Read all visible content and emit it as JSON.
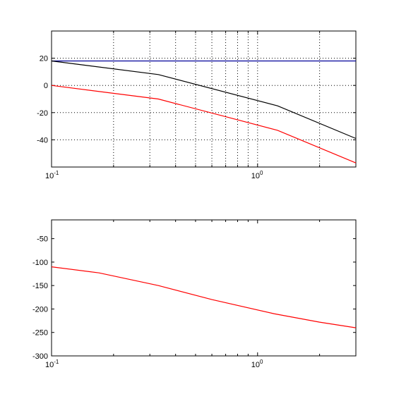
{
  "chart_data": [
    {
      "type": "line",
      "title": "",
      "xlabel": "",
      "ylabel": "",
      "xscale": "log",
      "xlim": [
        0.1,
        3
      ],
      "ylim": [
        -60,
        40
      ],
      "grid": true,
      "x_ticks": [
        {
          "base": "10",
          "exp": "-1",
          "value": 0.1
        },
        {
          "base": "10",
          "exp": "0",
          "value": 1
        }
      ],
      "y_ticks": [
        "20",
        "0",
        "-20",
        "-40"
      ],
      "y_tick_values": [
        20,
        0,
        -20,
        -40
      ],
      "series": [
        {
          "color": "#000099",
          "x": [
            0.1,
            3
          ],
          "y": [
            18,
            18
          ]
        },
        {
          "color": "#000000",
          "x": [
            0.1,
            0.33,
            1.25,
            3
          ],
          "y": [
            18,
            8,
            -15,
            -39
          ]
        },
        {
          "color": "#ff0000",
          "x": [
            0.1,
            0.33,
            1.25,
            3
          ],
          "y": [
            0,
            -10,
            -33,
            -57
          ]
        }
      ]
    },
    {
      "type": "line",
      "title": "",
      "xlabel": "",
      "ylabel": "",
      "xscale": "log",
      "xlim": [
        0.1,
        3
      ],
      "ylim": [
        -300,
        -10
      ],
      "grid": false,
      "x_ticks": [
        {
          "base": "10",
          "exp": "-1",
          "value": 0.1
        },
        {
          "base": "10",
          "exp": "0",
          "value": 1
        }
      ],
      "y_ticks": [
        "-50",
        "-100",
        "-150",
        "-200",
        "-250",
        "-300"
      ],
      "y_tick_values": [
        -50,
        -100,
        -150,
        -200,
        -250,
        -300
      ],
      "series": [
        {
          "color": "#ff0000",
          "x": [
            0.1,
            0.17,
            0.33,
            0.6,
            1.2,
            2,
            3
          ],
          "y": [
            -110,
            -123,
            -150,
            -180,
            -210,
            -228,
            -240
          ]
        }
      ]
    }
  ]
}
